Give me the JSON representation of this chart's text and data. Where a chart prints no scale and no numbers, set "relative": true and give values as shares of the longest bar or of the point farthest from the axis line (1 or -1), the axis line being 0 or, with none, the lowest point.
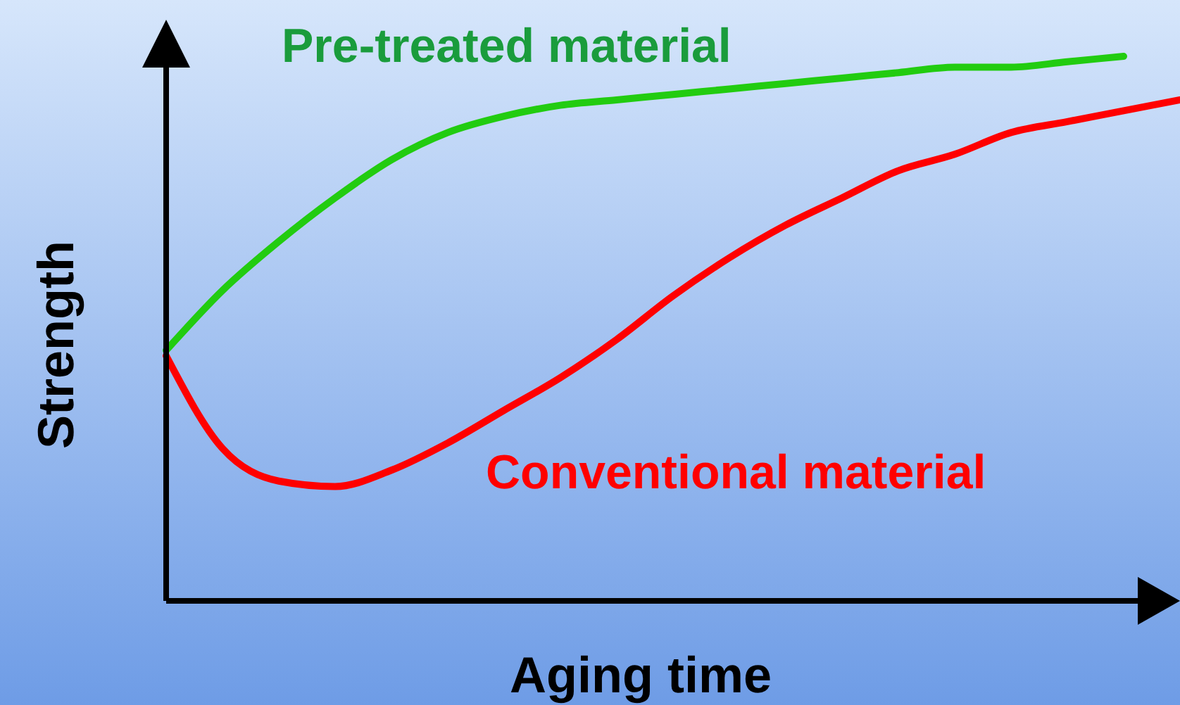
{
  "chart_data": {
    "type": "line",
    "relative": true,
    "xlabel": "Aging time",
    "ylabel": "Strength",
    "marker": "none",
    "line_style": "solid",
    "categories": [
      null,
      null,
      null,
      null,
      null,
      null,
      null,
      null,
      null,
      null,
      null,
      null,
      null,
      null,
      null,
      null,
      null,
      null,
      null
    ],
    "series": [
      {
        "name": "Pre-treated material",
        "color": "#22cc10",
        "values": [
          0.46,
          0.57,
          0.66,
          0.74,
          0.81,
          0.86,
          0.89,
          0.91,
          0.92,
          0.93,
          0.94,
          0.95,
          0.96,
          0.97,
          0.98,
          0.98,
          0.99,
          1,
          null
        ]
      },
      {
        "name": "Conventional material",
        "color": "#ff0000",
        "values": [
          0.45,
          0.28,
          0.22,
          0.21,
          0.24,
          0.29,
          0.35,
          0.41,
          0.48,
          0.56,
          0.63,
          0.69,
          0.74,
          0.79,
          0.82,
          0.86,
          0.88,
          0.9,
          0.92
        ]
      }
    ]
  }
}
